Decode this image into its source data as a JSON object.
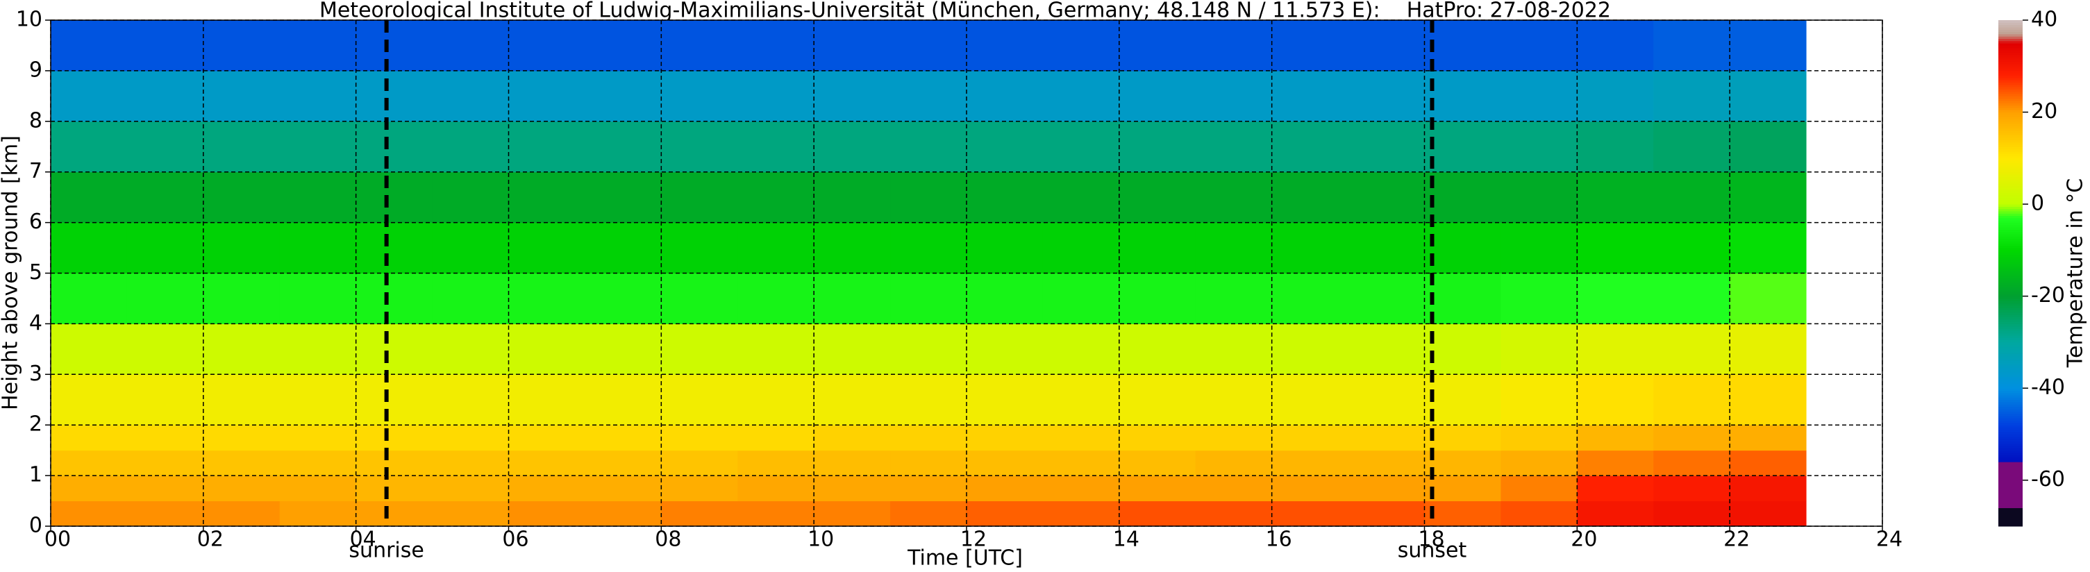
{
  "chart_data": {
    "type": "heatmap",
    "title": "Meteorological Institute of Ludwig-Maximilians-Universität (München, Germany; 48.148 N / 11.573 E):    HatPro: 27-08-2022",
    "x_label": "Time [UTC]",
    "y_label": "Height above ground [km]",
    "colorbar_label": "Temperature in °C",
    "x_edges": [
      0,
      1,
      2,
      3,
      4,
      5,
      6,
      7,
      8,
      9,
      10,
      11,
      12,
      13,
      14,
      15,
      16,
      17,
      18,
      19,
      20,
      21,
      22,
      23
    ],
    "y_edges": [
      0,
      0.5,
      1,
      1.5,
      2,
      3,
      4,
      5,
      6,
      7,
      8,
      9,
      10
    ],
    "z": [
      [
        21,
        21,
        21,
        20,
        20,
        20,
        21,
        21,
        22,
        22,
        22,
        23,
        24,
        24,
        25,
        25,
        25,
        25,
        24,
        25,
        30,
        31,
        31
      ],
      [
        18,
        18,
        18,
        18,
        17,
        17,
        18,
        18,
        18,
        19,
        19,
        19,
        20,
        20,
        20,
        20,
        20,
        20,
        20,
        22,
        28,
        29,
        30
      ],
      [
        15,
        15,
        15,
        15,
        15,
        15,
        15,
        15,
        15,
        16,
        16,
        16,
        16,
        16,
        16,
        17,
        17,
        17,
        17,
        18,
        22,
        23,
        24
      ],
      [
        12,
        12,
        12,
        12,
        12,
        12,
        12,
        12,
        12,
        12,
        13,
        13,
        13,
        13,
        13,
        13,
        13,
        13,
        13,
        14,
        17,
        18,
        18
      ],
      [
        8,
        8,
        8,
        8,
        8,
        8,
        8,
        8,
        8,
        8,
        8,
        8,
        8,
        8,
        8,
        8,
        8,
        8,
        8,
        9,
        11,
        12,
        12
      ],
      [
        2,
        2,
        2,
        2,
        2,
        2,
        2,
        2,
        2,
        2,
        2,
        2,
        2,
        2,
        2,
        2,
        2,
        2,
        2,
        3,
        5,
        5,
        6
      ],
      [
        -5,
        -5,
        -5,
        -5,
        -5,
        -5,
        -5,
        -5,
        -5,
        -5,
        -5,
        -5,
        -5,
        -5,
        -5,
        -5,
        -5,
        -5,
        -5,
        -4,
        -3,
        -3,
        -2
      ],
      [
        -11,
        -11,
        -11,
        -11,
        -11,
        -11,
        -11,
        -11,
        -11,
        -11,
        -11,
        -11,
        -11,
        -11,
        -11,
        -11,
        -11,
        -11,
        -11,
        -11,
        -10,
        -10,
        -9
      ],
      [
        -18,
        -18,
        -18,
        -18,
        -18,
        -18,
        -18,
        -18,
        -18,
        -18,
        -18,
        -18,
        -18,
        -18,
        -18,
        -18,
        -18,
        -18,
        -18,
        -18,
        -17,
        -17,
        -16
      ],
      [
        -27,
        -27,
        -27,
        -27,
        -27,
        -27,
        -27,
        -27,
        -27,
        -27,
        -27,
        -27,
        -27,
        -27,
        -27,
        -27,
        -27,
        -27,
        -27,
        -27,
        -26,
        -25,
        -24
      ],
      [
        -36,
        -36,
        -36,
        -36,
        -36,
        -36,
        -36,
        -36,
        -36,
        -36,
        -36,
        -36,
        -36,
        -36,
        -36,
        -36,
        -36,
        -36,
        -36,
        -36,
        -35,
        -34,
        -34
      ],
      [
        -46,
        -46,
        -46,
        -46,
        -46,
        -46,
        -46,
        -46,
        -46,
        -46,
        -46,
        -46,
        -46,
        -46,
        -46,
        -46,
        -46,
        -46,
        -46,
        -46,
        -46,
        -45,
        -45
      ]
    ],
    "xlim": [
      0,
      24
    ],
    "ylim": [
      0,
      10
    ],
    "zlim": [
      -70,
      40
    ],
    "xticks": [
      {
        "value": 0,
        "label": "00"
      },
      {
        "value": 2,
        "label": "02"
      },
      {
        "value": 4,
        "label": "04"
      },
      {
        "value": 6,
        "label": "06"
      },
      {
        "value": 8,
        "label": "08"
      },
      10,
      12,
      14,
      16,
      18,
      20,
      22,
      24
    ],
    "yticks": [
      0,
      1,
      2,
      3,
      4,
      5,
      6,
      7,
      8,
      9,
      10
    ],
    "zticks": [
      -60,
      -40,
      -20,
      0,
      20,
      40
    ],
    "grid": true,
    "colorscale": [
      [
        -70,
        "#0c0820"
      ],
      [
        -66,
        "#0c0820"
      ],
      [
        -65.9,
        "#7a0a7a"
      ],
      [
        -56,
        "#7a0a7a"
      ],
      [
        -55.9,
        "#0010c0"
      ],
      [
        -48,
        "#0040e0"
      ],
      [
        -40,
        "#0090e0"
      ],
      [
        -30,
        "#00a8a0"
      ],
      [
        -20,
        "#00a030"
      ],
      [
        -10,
        "#00d800"
      ],
      [
        -3,
        "#20ff20"
      ],
      [
        0,
        "#c0ff00"
      ],
      [
        10,
        "#ffe800"
      ],
      [
        20,
        "#ffa000"
      ],
      [
        28,
        "#ff2000"
      ],
      [
        35,
        "#e00000"
      ],
      [
        37,
        "#c0a090"
      ],
      [
        40,
        "#d0c0c0"
      ]
    ],
    "annotations": [
      {
        "x": 4.4,
        "label": "sunrise"
      },
      {
        "x": 18.1,
        "label": "sunset"
      }
    ]
  }
}
